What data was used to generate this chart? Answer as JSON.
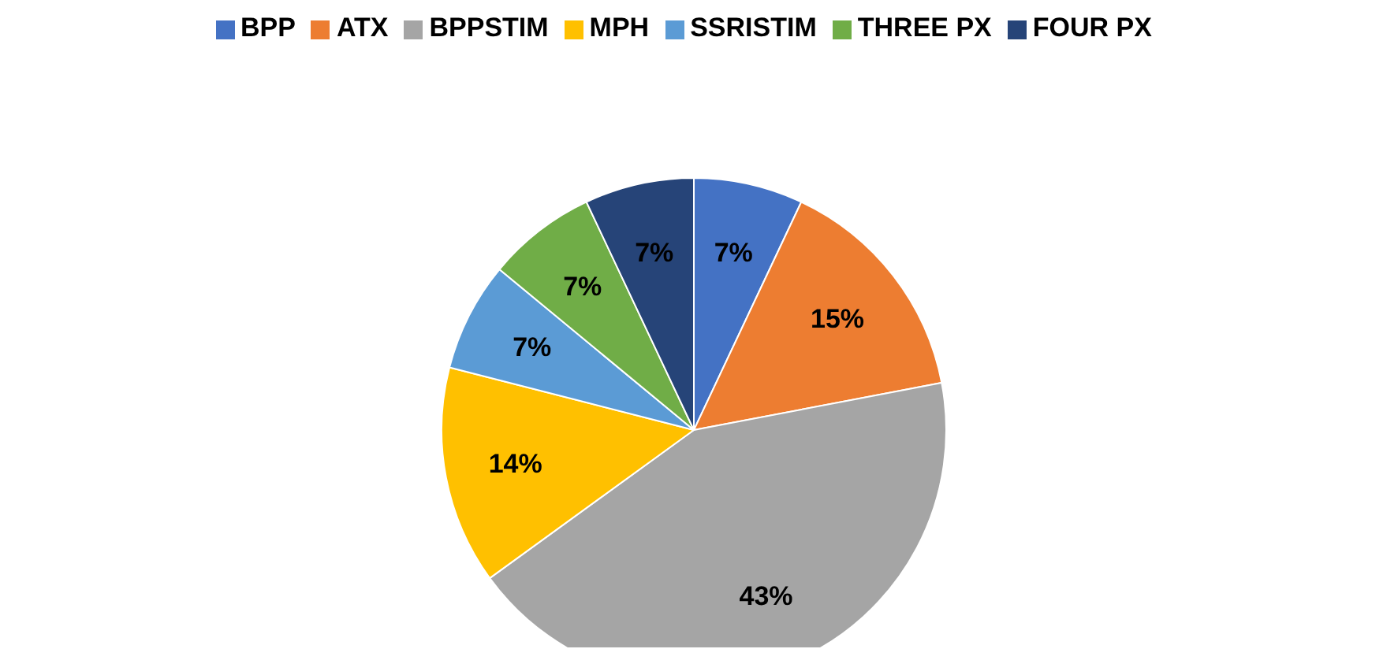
{
  "chart_data": {
    "type": "pie",
    "categories": [
      "BPP",
      "ATX",
      "BPPSTIM",
      "MPH",
      "SSRISTIM",
      "THREE PX",
      "FOUR  PX"
    ],
    "values": [
      7,
      15,
      43,
      14,
      7,
      7,
      7
    ],
    "colors": [
      "#4472c4",
      "#ed7d31",
      "#a5a5a5",
      "#ffc000",
      "#5b9bd5",
      "#70ad47",
      "#264478"
    ],
    "value_labels": [
      "7%",
      "15%",
      "43%",
      "14%",
      "7%",
      "7%",
      "7%"
    ],
    "legend": "top"
  }
}
